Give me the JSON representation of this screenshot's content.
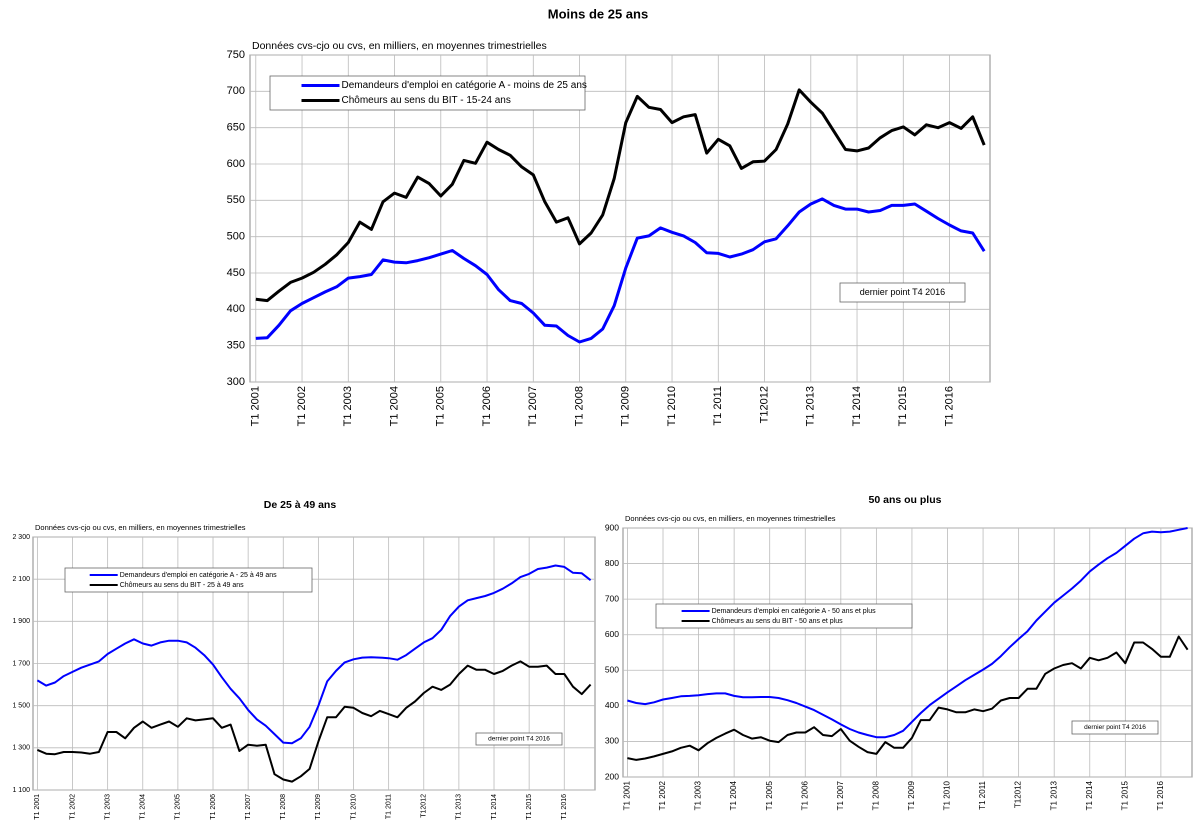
{
  "chart_data": [
    {
      "type": "line",
      "title": "Moins de 25 ans",
      "subtitle": "Données cvs-cjo ou cvs, en milliers, en moyennes trimestrielles",
      "annotation": "dernier point T4 2016",
      "categories": [
        "T1 2001",
        null,
        null,
        null,
        "T1 2002",
        null,
        null,
        null,
        "T1 2003",
        null,
        null,
        null,
        "T1 2004",
        null,
        null,
        null,
        "T1 2005",
        null,
        null,
        null,
        "T1 2006",
        null,
        null,
        null,
        "T1 2007",
        null,
        null,
        null,
        "T1 2008",
        null,
        null,
        null,
        "T1 2009",
        null,
        null,
        null,
        "T1 2010",
        null,
        null,
        null,
        "T1 2011",
        null,
        null,
        null,
        "T12012",
        null,
        null,
        null,
        "T1 2013",
        null,
        null,
        null,
        "T1 2014",
        null,
        null,
        null,
        "T1 2015",
        null,
        null,
        null,
        "T1 2016",
        null,
        null,
        null
      ],
      "ylim": [
        300,
        750
      ],
      "yticks": [
        300,
        350,
        400,
        450,
        500,
        550,
        600,
        650,
        700,
        750
      ],
      "grid": true,
      "series": [
        {
          "name": "Demandeurs d'emploi en catégorie A - moins de 25 ans",
          "color": "#0000ff",
          "values": [
            360,
            361,
            378,
            398,
            408,
            416,
            424,
            431,
            443,
            445,
            448,
            468,
            465,
            464,
            467,
            471,
            476,
            481,
            470,
            460,
            448,
            427,
            412,
            408,
            395,
            378,
            377,
            364,
            355,
            360,
            373,
            405,
            457,
            498,
            501,
            512,
            506,
            501,
            492,
            478,
            477,
            472,
            476,
            482,
            493,
            497,
            515,
            534,
            545,
            552,
            543,
            538,
            538,
            534,
            536,
            543,
            543,
            545,
            535,
            525,
            516,
            508,
            505,
            480
          ]
        },
        {
          "name": "Chômeurs au sens du BIT - 15-24 ans",
          "color": "#000000",
          "values": [
            414,
            412,
            425,
            437,
            443,
            451,
            462,
            475,
            492,
            520,
            510,
            548,
            560,
            554,
            582,
            573,
            556,
            572,
            605,
            601,
            630,
            620,
            612,
            596,
            585,
            548,
            520,
            526,
            490,
            505,
            530,
            580,
            657,
            693,
            678,
            675,
            657,
            665,
            668,
            615,
            634,
            625,
            594,
            603,
            604,
            620,
            655,
            702,
            685,
            670,
            645,
            620,
            618,
            622,
            636,
            646,
            651,
            640,
            654,
            650,
            657,
            649,
            665,
            626
          ]
        }
      ]
    },
    {
      "type": "line",
      "title": "De 25 à 49 ans",
      "subtitle": "Données cvs-cjo ou cvs, en milliers, en moyennes trimestrielles",
      "annotation": "dernier point T4 2016",
      "categories": [
        "T1 2001",
        null,
        null,
        null,
        "T1 2002",
        null,
        null,
        null,
        "T1 2003",
        null,
        null,
        null,
        "T1 2004",
        null,
        null,
        null,
        "T1 2005",
        null,
        null,
        null,
        "T1 2006",
        null,
        null,
        null,
        "T1 2007",
        null,
        null,
        null,
        "T1 2008",
        null,
        null,
        null,
        "T1 2009",
        null,
        null,
        null,
        "T1 2010",
        null,
        null,
        null,
        "T1 2011",
        null,
        null,
        null,
        "T12012",
        null,
        null,
        null,
        "T1 2013",
        null,
        null,
        null,
        "T1 2014",
        null,
        null,
        null,
        "T1 2015",
        null,
        null,
        null,
        "T1 2016",
        null,
        null,
        null
      ],
      "ylim": [
        1100,
        2300
      ],
      "yticks": [
        {
          "value": 1100,
          "label": "1 100"
        },
        {
          "value": 1300,
          "label": "1 300"
        },
        {
          "value": 1500,
          "label": "1 500"
        },
        {
          "value": 1700,
          "label": "1 700"
        },
        {
          "value": 1900,
          "label": "1 900"
        },
        {
          "value": 2100,
          "label": "2 100"
        },
        {
          "value": 2300,
          "label": "2 300"
        }
      ],
      "grid": true,
      "series": [
        {
          "name": "Demandeurs d'emploi en catégorie A - 25 à 49 ans",
          "color": "#0000ff",
          "values": [
            1620,
            1595,
            1610,
            1640,
            1660,
            1680,
            1695,
            1710,
            1745,
            1770,
            1795,
            1815,
            1795,
            1785,
            1800,
            1808,
            1808,
            1800,
            1775,
            1740,
            1695,
            1635,
            1580,
            1535,
            1480,
            1435,
            1405,
            1365,
            1325,
            1322,
            1345,
            1400,
            1500,
            1615,
            1665,
            1705,
            1720,
            1728,
            1730,
            1728,
            1725,
            1718,
            1740,
            1770,
            1800,
            1820,
            1860,
            1925,
            1970,
            2000,
            2010,
            2020,
            2035,
            2055,
            2080,
            2110,
            2125,
            2148,
            2155,
            2165,
            2158,
            2130,
            2128,
            2095
          ]
        },
        {
          "name": "Chômeurs au sens du BIT - 25 à 49 ans",
          "color": "#000000",
          "values": [
            1290,
            1272,
            1270,
            1280,
            1280,
            1278,
            1272,
            1280,
            1375,
            1375,
            1345,
            1395,
            1425,
            1395,
            1410,
            1425,
            1400,
            1440,
            1430,
            1435,
            1440,
            1395,
            1410,
            1285,
            1315,
            1310,
            1315,
            1175,
            1150,
            1140,
            1165,
            1200,
            1330,
            1445,
            1445,
            1495,
            1490,
            1465,
            1450,
            1475,
            1460,
            1445,
            1490,
            1520,
            1560,
            1590,
            1575,
            1600,
            1650,
            1690,
            1670,
            1670,
            1650,
            1665,
            1690,
            1710,
            1685,
            1685,
            1690,
            1650,
            1650,
            1590,
            1555,
            1600
          ]
        }
      ]
    },
    {
      "type": "line",
      "title": "50 ans ou plus",
      "subtitle": "Données cvs-cjo ou cvs, en milliers, en moyennes trimestrielles",
      "annotation": "dernier point T4 2016",
      "categories": [
        "T1 2001",
        null,
        null,
        null,
        "T1 2002",
        null,
        null,
        null,
        "T1 2003",
        null,
        null,
        null,
        "T1 2004",
        null,
        null,
        null,
        "T1 2005",
        null,
        null,
        null,
        "T1 2006",
        null,
        null,
        null,
        "T1 2007",
        null,
        null,
        null,
        "T1 2008",
        null,
        null,
        null,
        "T1 2009",
        null,
        null,
        null,
        "T1 2010",
        null,
        null,
        null,
        "T1 2011",
        null,
        null,
        null,
        "T12012",
        null,
        null,
        null,
        "T1 2013",
        null,
        null,
        null,
        "T1 2014",
        null,
        null,
        null,
        "T1 2015",
        null,
        null,
        null,
        "T1 2016",
        null,
        null,
        null
      ],
      "ylim": [
        200,
        900
      ],
      "yticks": [
        200,
        300,
        400,
        500,
        600,
        700,
        800,
        900
      ],
      "grid": true,
      "series": [
        {
          "name": "Demandeurs d'emploi en catégorie A - 50 ans et plus",
          "color": "#0000ff",
          "values": [
            415,
            408,
            405,
            410,
            418,
            422,
            427,
            428,
            430,
            433,
            435,
            435,
            428,
            424,
            424,
            425,
            425,
            422,
            416,
            408,
            398,
            388,
            375,
            362,
            348,
            335,
            325,
            318,
            312,
            312,
            318,
            330,
            355,
            380,
            402,
            420,
            438,
            455,
            472,
            487,
            502,
            518,
            540,
            565,
            588,
            610,
            640,
            665,
            690,
            710,
            730,
            752,
            778,
            797,
            815,
            830,
            850,
            870,
            885,
            890,
            888,
            890,
            895,
            900
          ]
        },
        {
          "name": "Chômeurs au sens du BIT - 50 ans et plus",
          "color": "#000000",
          "values": [
            253,
            248,
            252,
            258,
            265,
            272,
            282,
            288,
            275,
            295,
            310,
            322,
            333,
            318,
            308,
            312,
            302,
            298,
            318,
            325,
            325,
            340,
            318,
            315,
            335,
            302,
            285,
            270,
            265,
            298,
            282,
            282,
            310,
            360,
            360,
            395,
            390,
            382,
            382,
            390,
            385,
            392,
            415,
            422,
            422,
            448,
            448,
            490,
            505,
            515,
            520,
            505,
            535,
            528,
            535,
            550,
            520,
            578,
            578,
            560,
            538,
            538,
            595,
            558
          ]
        }
      ]
    }
  ]
}
